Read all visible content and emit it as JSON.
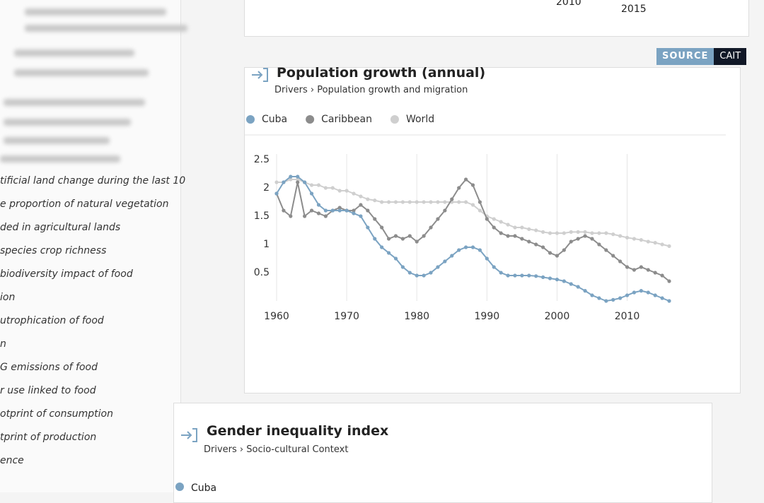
{
  "sidebar": {
    "items": [
      "tificial land change during the last 10",
      "e proportion of natural vegetation",
      "ded in agricultural lands",
      "species crop richness",
      "biodiversity impact of food",
      "ion",
      "utrophication of food",
      "n",
      "G emissions of food",
      "r use linked to food",
      "otprint of consumption",
      "tprint of production",
      "ence"
    ]
  },
  "top_card": {
    "x_labels": [
      "2010",
      "2015"
    ]
  },
  "source_badge": {
    "label": "SOURCE",
    "name": "CAIT"
  },
  "population_card": {
    "breadcrumb": [
      "Drivers",
      "Population growth and migration"
    ]
  },
  "chart_data": {
    "type": "line",
    "title": "Population growth (annual)",
    "x": [
      1960,
      1961,
      1962,
      1963,
      1964,
      1965,
      1966,
      1967,
      1968,
      1969,
      1970,
      1971,
      1972,
      1973,
      1974,
      1975,
      1976,
      1977,
      1978,
      1979,
      1980,
      1981,
      1982,
      1983,
      1984,
      1985,
      1986,
      1987,
      1988,
      1989,
      1990,
      1991,
      1992,
      1993,
      1994,
      1995,
      1996,
      1997,
      1998,
      1999,
      2000,
      2001,
      2002,
      2003,
      2004,
      2005,
      2006,
      2007,
      2008,
      2009,
      2010,
      2011,
      2012,
      2013,
      2014,
      2015,
      2016
    ],
    "series": [
      {
        "name": "Cuba",
        "color": "#7ba3c2",
        "values": [
          1.9,
          2.1,
          2.2,
          2.2,
          2.1,
          1.9,
          1.7,
          1.6,
          1.6,
          1.6,
          1.6,
          1.55,
          1.5,
          1.3,
          1.1,
          0.95,
          0.85,
          0.75,
          0.6,
          0.5,
          0.45,
          0.45,
          0.5,
          0.6,
          0.7,
          0.8,
          0.9,
          0.95,
          0.95,
          0.9,
          0.75,
          0.6,
          0.5,
          0.45,
          0.45,
          0.45,
          0.45,
          0.44,
          0.42,
          0.4,
          0.38,
          0.35,
          0.3,
          0.25,
          0.18,
          0.1,
          0.05,
          0.0,
          0.02,
          0.05,
          0.1,
          0.15,
          0.18,
          0.15,
          0.1,
          0.05,
          0.0
        ]
      },
      {
        "name": "Caribbean",
        "color": "#8c8c8c",
        "values": [
          1.9,
          1.6,
          1.5,
          2.1,
          1.5,
          1.6,
          1.55,
          1.5,
          1.6,
          1.65,
          1.6,
          1.6,
          1.7,
          1.6,
          1.45,
          1.3,
          1.1,
          1.15,
          1.1,
          1.15,
          1.05,
          1.15,
          1.3,
          1.45,
          1.6,
          1.8,
          2.0,
          2.15,
          2.05,
          1.75,
          1.45,
          1.3,
          1.2,
          1.15,
          1.15,
          1.1,
          1.05,
          1.0,
          0.95,
          0.85,
          0.8,
          0.9,
          1.05,
          1.1,
          1.15,
          1.1,
          1.0,
          0.9,
          0.8,
          0.7,
          0.6,
          0.55,
          0.6,
          0.55,
          0.5,
          0.45,
          0.35
        ]
      },
      {
        "name": "World",
        "color": "#cfcfcf",
        "values": [
          2.1,
          2.1,
          2.15,
          2.15,
          2.1,
          2.05,
          2.05,
          2.0,
          2.0,
          1.95,
          1.95,
          1.9,
          1.85,
          1.8,
          1.78,
          1.75,
          1.75,
          1.75,
          1.75,
          1.75,
          1.75,
          1.75,
          1.75,
          1.75,
          1.75,
          1.75,
          1.75,
          1.75,
          1.7,
          1.6,
          1.5,
          1.45,
          1.4,
          1.35,
          1.3,
          1.3,
          1.27,
          1.25,
          1.22,
          1.2,
          1.2,
          1.2,
          1.22,
          1.22,
          1.22,
          1.2,
          1.2,
          1.2,
          1.18,
          1.15,
          1.12,
          1.1,
          1.08,
          1.05,
          1.03,
          1.0,
          0.97
        ]
      }
    ],
    "xlim": [
      1960,
      2016
    ],
    "xticks": [
      1960,
      1970,
      1980,
      1990,
      2000,
      2010
    ],
    "ylim": [
      0,
      2.5
    ],
    "yticks": [
      0.5,
      1,
      1.5,
      2,
      2.5
    ],
    "grid": true,
    "grid_axis": "x",
    "legend": "top-left"
  },
  "gender_card": {
    "title": "Gender inequality index",
    "breadcrumb": [
      "Drivers",
      "Socio-cultural Context"
    ],
    "legend": [
      "Cuba"
    ]
  }
}
